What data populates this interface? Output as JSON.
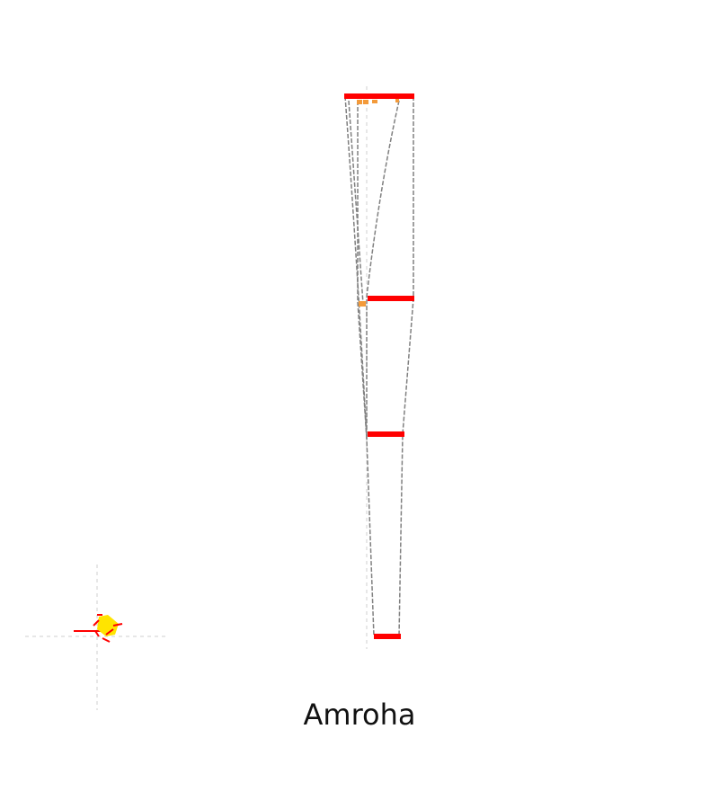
{
  "diagram": {
    "title": "Amroha",
    "colors": {
      "background": "#ffffff",
      "segment": "#ff0000",
      "marker": "#f39a3a",
      "connector": "#808080",
      "guide": "#cfcfcf",
      "marker_cluster": "#ffe400"
    }
  }
}
